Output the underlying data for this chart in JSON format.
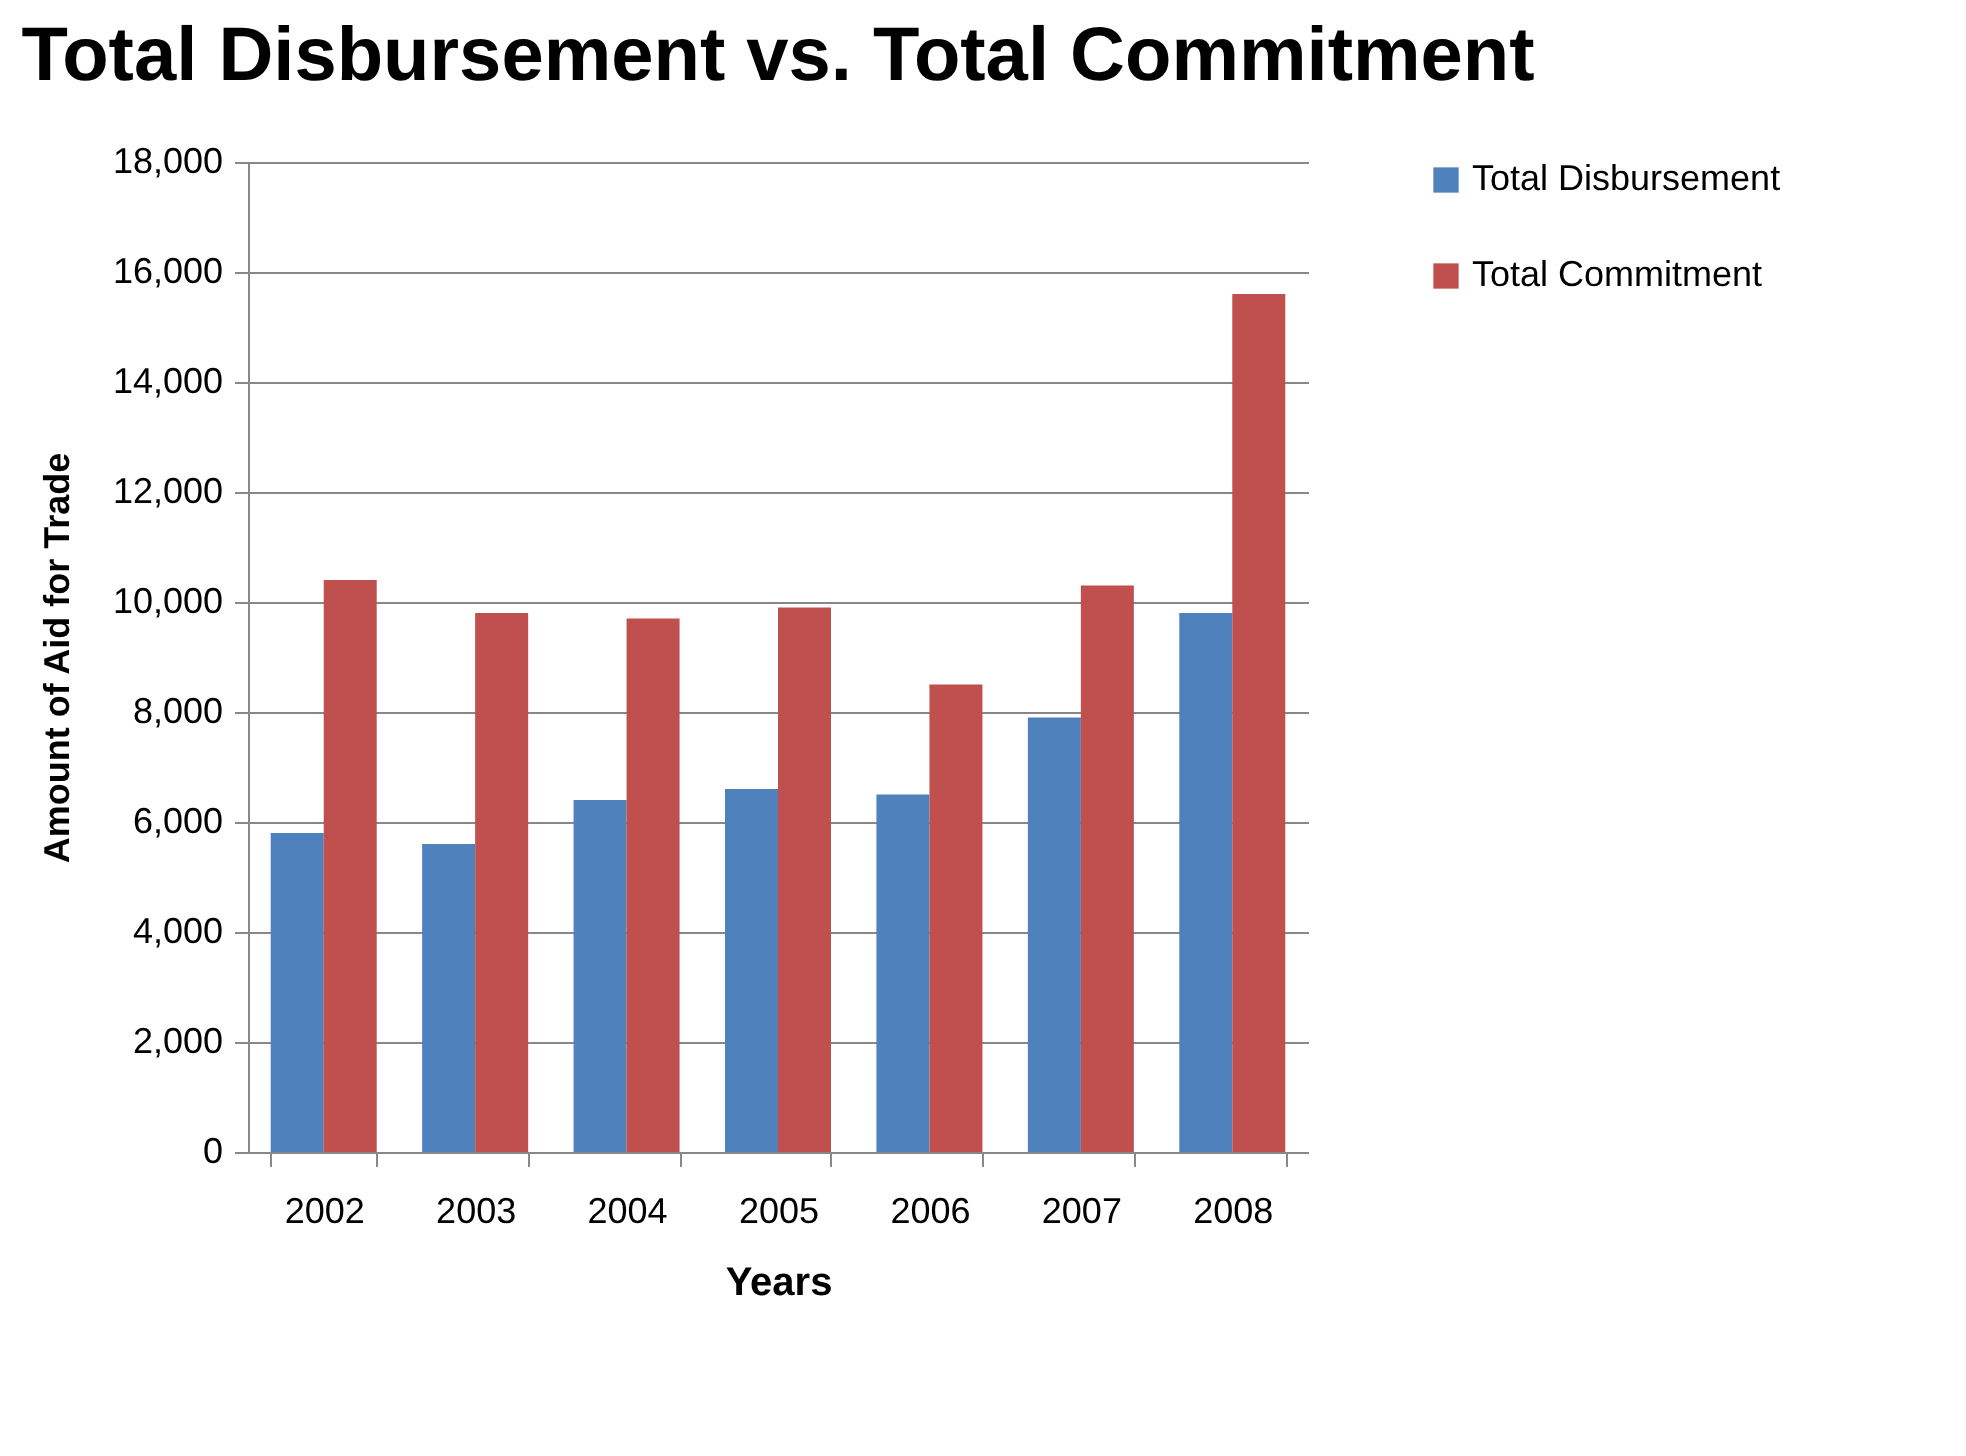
{
  "chart_data": {
    "type": "bar",
    "title": "Total Disbursement vs. Total Commitment",
    "xlabel": "Years",
    "ylabel": "Amount of Aid for Trade",
    "categories": [
      "2002",
      "2003",
      "2004",
      "2005",
      "2006",
      "2007",
      "2008"
    ],
    "series": [
      {
        "name": "Total Disbursement",
        "color": "#4f81bd",
        "values": [
          5800,
          5600,
          6400,
          6600,
          6500,
          7900,
          9800
        ]
      },
      {
        "name": "Total Commitment",
        "color": "#c0504d",
        "values": [
          10400,
          9800,
          9700,
          9900,
          8500,
          10300,
          15600
        ]
      }
    ],
    "ylim": [
      0,
      18000
    ],
    "yticks": [
      0,
      {
        "value": 2000,
        "label": "2,000"
      },
      {
        "value": 4000,
        "label": "4,000"
      },
      {
        "value": 6000,
        "label": "6,000"
      },
      {
        "value": 8000,
        "label": "8,000"
      },
      {
        "value": 10000,
        "label": "10,000"
      },
      {
        "value": 12000,
        "label": "12,000"
      },
      {
        "value": 14000,
        "label": "14,000"
      },
      {
        "value": 16000,
        "label": "16,000"
      },
      {
        "value": 18000,
        "label": "18,000"
      }
    ],
    "grid": "y",
    "legend": "right"
  }
}
